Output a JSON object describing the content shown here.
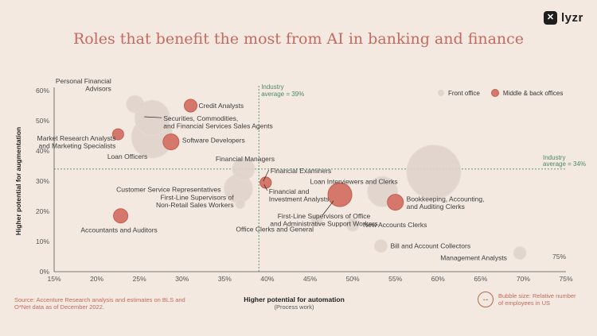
{
  "title": "Roles that benefit the most from AI in banking and finance",
  "brand": {
    "mark": "✕",
    "name": "lyzr"
  },
  "source_text": "Source: Accenture Research analysis and estimates on BLS and O*Net data as of December 2022.",
  "bubble_size_note": "Bubble size: Relative number of employees in US",
  "colors": {
    "background": "#f3e9e0",
    "front": "#e0d4cd",
    "back": "#d5776a",
    "back_stroke": "#c35f52",
    "title": "#c56a5e",
    "average": "#4d8a66"
  },
  "chart_data": {
    "type": "scatter",
    "title": "Roles that benefit the most from AI in banking and finance",
    "xlabel": "Higher potential for automation",
    "xlabel_sub": "(Process work)",
    "ylabel": "Higher potential for augmentation",
    "xlim": [
      15,
      75
    ],
    "ylim": [
      0,
      60
    ],
    "x_ticks": [
      "15%",
      "20%",
      "25%",
      "30%",
      "35%",
      "40%",
      "45%",
      "50%",
      "55%",
      "60%",
      "65%",
      "70%",
      "75%"
    ],
    "y_ticks": [
      "0%",
      "10%",
      "20%",
      "30%",
      "40%",
      "50%",
      "60%"
    ],
    "x_avg": 39,
    "y_avg": 34,
    "x_avg_label": [
      "Industry",
      "average = 39%"
    ],
    "y_avg_label": [
      "Industry",
      "average = 34%"
    ],
    "legend": [
      {
        "name": "Front office",
        "group": "front"
      },
      {
        "name": "Middle & back offices",
        "group": "back"
      }
    ],
    "points": [
      {
        "name": [
          "Personal Financial",
          "Advisors"
        ],
        "x": 24.5,
        "y": 55.5,
        "size": 11,
        "group": "front"
      },
      {
        "name": [
          "Credit Analysts"
        ],
        "x": 31,
        "y": 55,
        "size": 8,
        "group": "back"
      },
      {
        "name": [
          "Securities, Commodities,",
          "and Financial Services Sales Agents"
        ],
        "x": 26.5,
        "y": 51,
        "size": 22,
        "group": "front"
      },
      {
        "name": [
          "Market Research Analysts",
          "and Marketing Specialists"
        ],
        "x": 22.5,
        "y": 45.5,
        "size": 7,
        "group": "back"
      },
      {
        "name": [
          "Software Developers"
        ],
        "x": 28.7,
        "y": 43,
        "size": 10,
        "group": "back"
      },
      {
        "name": [
          "Loan Officers"
        ],
        "x": 26.5,
        "y": 44.5,
        "size": 26,
        "group": "front"
      },
      {
        "name": [
          "Financial Managers"
        ],
        "x": 37.2,
        "y": 34,
        "size": 14,
        "group": "front"
      },
      {
        "name": [
          "Financial Examiners"
        ],
        "x": 39.8,
        "y": 29.5,
        "size": 7,
        "group": "back"
      },
      {
        "name": [
          "Financial and",
          "Investment Analysts"
        ],
        "x": 39.8,
        "y": 29.5,
        "size": 7,
        "group": "back"
      },
      {
        "name": [
          "Customer Service Representatives"
        ],
        "x": 36.6,
        "y": 27.5,
        "size": 18,
        "group": "front"
      },
      {
        "name": [
          "First-Line Supervisors of",
          "Non-Retail Sales Workers"
        ],
        "x": 36.8,
        "y": 22.5,
        "size": 6,
        "group": "front"
      },
      {
        "name": [
          "Accountants and Auditors"
        ],
        "x": 22.8,
        "y": 18.5,
        "size": 9,
        "group": "back"
      },
      {
        "name": [
          "Office Clerks and General"
        ],
        "x": 45.8,
        "y": 17,
        "size": 7,
        "group": "front"
      },
      {
        "name": [
          "First-Line Supervisors of Office",
          "and Administrative Support Workers"
        ],
        "x": 48.5,
        "y": 25.5,
        "size": 15,
        "group": "back"
      },
      {
        "name": [
          "New Accounts Clerks"
        ],
        "x": 50,
        "y": 15.5,
        "size": 8,
        "group": "front"
      },
      {
        "name": [
          "Loan Interviewers and Clerks"
        ],
        "x": 53.5,
        "y": 26.5,
        "size": 19,
        "group": "front"
      },
      {
        "name": [
          "Bookkeeping, Accounting,",
          "and Auditing Clerks"
        ],
        "x": 55,
        "y": 23,
        "size": 10,
        "group": "back"
      },
      {
        "name": [
          "Bill and Account Collectors"
        ],
        "x": 53.3,
        "y": 8.5,
        "size": 8,
        "group": "front"
      },
      {
        "name": [
          ""
        ],
        "x": 59.5,
        "y": 33,
        "size": 34,
        "group": "front"
      },
      {
        "name": [
          "Management Analysts"
        ],
        "x": 69.6,
        "y": 6.2,
        "size": 8,
        "group": "front"
      }
    ]
  }
}
